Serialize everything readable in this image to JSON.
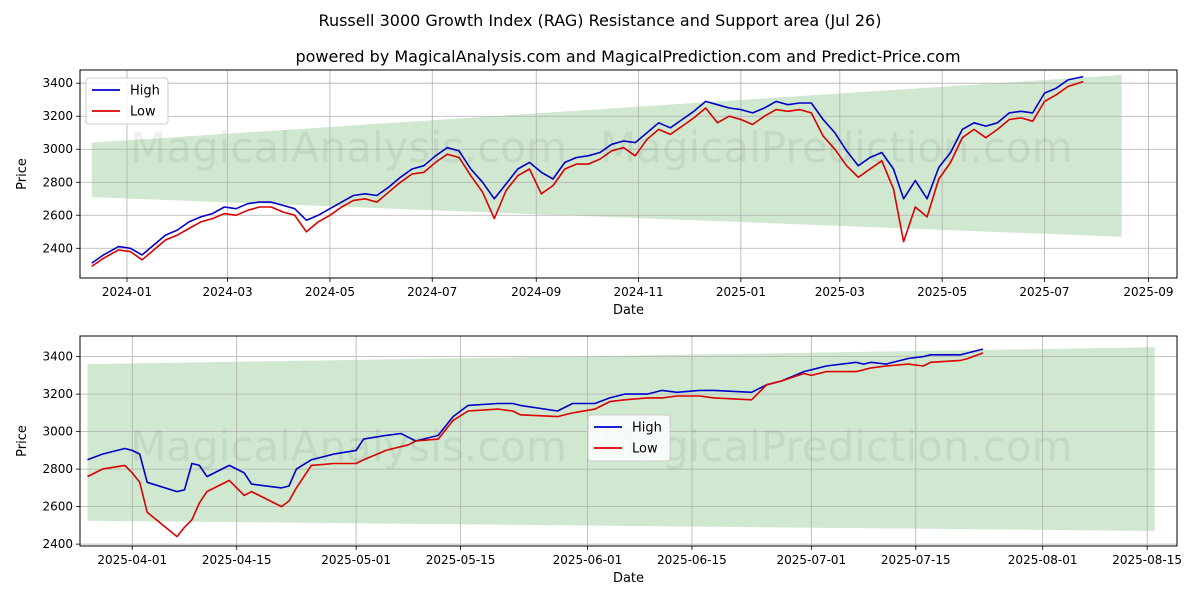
{
  "title": "Russell 3000 Growth Index (RAG) Resistance and Support area (Jul 26)",
  "subtitle": "powered by MagicalAnalysis.com and MagicalPrediction.com and Predict-Price.com",
  "watermarks": [
    "MagicalAnalysis.com",
    "MagicalPrediction.com"
  ],
  "colors": {
    "high": "#0000cc",
    "low": "#dd0000",
    "band": "#a8d5a8"
  },
  "chart_data": [
    {
      "type": "line",
      "xlabel": "Date",
      "ylabel": "Price",
      "xlim": [
        "2023-12-04",
        "2025-09-18"
      ],
      "ylim": [
        2220,
        3480
      ],
      "xticks": [
        "2024-01-01",
        "2024-03-01",
        "2024-05-01",
        "2024-07-01",
        "2024-09-01",
        "2024-11-01",
        "2025-01-01",
        "2025-03-01",
        "2025-05-01",
        "2025-07-01",
        "2025-09-01"
      ],
      "xtick_labels": [
        "2024-01",
        "2024-03",
        "2024-05",
        "2024-07",
        "2024-09",
        "2024-11",
        "2025-01",
        "2025-03",
        "2025-05",
        "2025-07",
        "2025-09"
      ],
      "yticks": [
        2400,
        2600,
        2800,
        3000,
        3200,
        3400
      ],
      "grid": true,
      "legend": "top-left",
      "band": {
        "start": "2023-12-11",
        "end": "2025-08-16",
        "upper": [
          3040,
          3450
        ],
        "lower": [
          2710,
          2470
        ]
      },
      "series": [
        {
          "name": "High",
          "x": [
            "2023-12-11",
            "2023-12-18",
            "2023-12-27",
            "2024-01-03",
            "2024-01-10",
            "2024-01-17",
            "2024-01-24",
            "2024-01-31",
            "2024-02-07",
            "2024-02-14",
            "2024-02-21",
            "2024-02-28",
            "2024-03-06",
            "2024-03-13",
            "2024-03-20",
            "2024-03-27",
            "2024-04-03",
            "2024-04-10",
            "2024-04-17",
            "2024-04-24",
            "2024-05-01",
            "2024-05-08",
            "2024-05-15",
            "2024-05-22",
            "2024-05-29",
            "2024-06-05",
            "2024-06-12",
            "2024-06-19",
            "2024-06-26",
            "2024-07-03",
            "2024-07-10",
            "2024-07-17",
            "2024-07-24",
            "2024-07-31",
            "2024-08-07",
            "2024-08-14",
            "2024-08-21",
            "2024-08-28",
            "2024-09-04",
            "2024-09-11",
            "2024-09-18",
            "2024-09-25",
            "2024-10-02",
            "2024-10-09",
            "2024-10-16",
            "2024-10-23",
            "2024-10-30",
            "2024-11-06",
            "2024-11-13",
            "2024-11-20",
            "2024-11-27",
            "2024-12-04",
            "2024-12-11",
            "2024-12-18",
            "2024-12-25",
            "2025-01-01",
            "2025-01-08",
            "2025-01-15",
            "2025-01-22",
            "2025-01-29",
            "2025-02-05",
            "2025-02-12",
            "2025-02-19",
            "2025-02-26",
            "2025-03-05",
            "2025-03-12",
            "2025-03-19",
            "2025-03-26",
            "2025-04-02",
            "2025-04-08",
            "2025-04-15",
            "2025-04-22",
            "2025-04-29",
            "2025-05-06",
            "2025-05-13",
            "2025-05-20",
            "2025-05-27",
            "2025-06-03",
            "2025-06-10",
            "2025-06-17",
            "2025-06-24",
            "2025-07-01",
            "2025-07-08",
            "2025-07-15",
            "2025-07-24"
          ],
          "values": [
            2310,
            2360,
            2410,
            2400,
            2360,
            2420,
            2480,
            2510,
            2560,
            2590,
            2610,
            2650,
            2640,
            2670,
            2680,
            2680,
            2660,
            2640,
            2570,
            2600,
            2640,
            2680,
            2720,
            2730,
            2720,
            2770,
            2830,
            2880,
            2900,
            2960,
            3010,
            2990,
            2880,
            2800,
            2700,
            2790,
            2880,
            2920,
            2860,
            2820,
            2920,
            2950,
            2960,
            2980,
            3030,
            3050,
            3040,
            3100,
            3160,
            3130,
            3180,
            3230,
            3290,
            3270,
            3250,
            3240,
            3220,
            3250,
            3290,
            3270,
            3280,
            3280,
            3180,
            3100,
            2990,
            2900,
            2950,
            2980,
            2880,
            2700,
            2810,
            2700,
            2890,
            2980,
            3120,
            3160,
            3140,
            3160,
            3220,
            3230,
            3220,
            3340,
            3370,
            3420,
            3440
          ]
        },
        {
          "name": "Low",
          "x": [
            "2023-12-11",
            "2023-12-18",
            "2023-12-27",
            "2024-01-03",
            "2024-01-10",
            "2024-01-17",
            "2024-01-24",
            "2024-01-31",
            "2024-02-07",
            "2024-02-14",
            "2024-02-21",
            "2024-02-28",
            "2024-03-06",
            "2024-03-13",
            "2024-03-20",
            "2024-03-27",
            "2024-04-03",
            "2024-04-10",
            "2024-04-17",
            "2024-04-24",
            "2024-05-01",
            "2024-05-08",
            "2024-05-15",
            "2024-05-22",
            "2024-05-29",
            "2024-06-05",
            "2024-06-12",
            "2024-06-19",
            "2024-06-26",
            "2024-07-03",
            "2024-07-10",
            "2024-07-17",
            "2024-07-24",
            "2024-07-31",
            "2024-08-07",
            "2024-08-14",
            "2024-08-21",
            "2024-08-28",
            "2024-09-04",
            "2024-09-11",
            "2024-09-18",
            "2024-09-25",
            "2024-10-02",
            "2024-10-09",
            "2024-10-16",
            "2024-10-23",
            "2024-10-30",
            "2024-11-06",
            "2024-11-13",
            "2024-11-20",
            "2024-11-27",
            "2024-12-04",
            "2024-12-11",
            "2024-12-18",
            "2024-12-25",
            "2025-01-01",
            "2025-01-08",
            "2025-01-15",
            "2025-01-22",
            "2025-01-29",
            "2025-02-05",
            "2025-02-12",
            "2025-02-19",
            "2025-02-26",
            "2025-03-05",
            "2025-03-12",
            "2025-03-19",
            "2025-03-26",
            "2025-04-02",
            "2025-04-08",
            "2025-04-15",
            "2025-04-22",
            "2025-04-29",
            "2025-05-06",
            "2025-05-13",
            "2025-05-20",
            "2025-05-27",
            "2025-06-03",
            "2025-06-10",
            "2025-06-17",
            "2025-06-24",
            "2025-07-01",
            "2025-07-08",
            "2025-07-15",
            "2025-07-24"
          ],
          "values": [
            2290,
            2340,
            2390,
            2380,
            2330,
            2390,
            2450,
            2480,
            2520,
            2560,
            2580,
            2610,
            2600,
            2630,
            2650,
            2650,
            2620,
            2600,
            2500,
            2560,
            2600,
            2650,
            2690,
            2700,
            2680,
            2740,
            2800,
            2850,
            2860,
            2920,
            2970,
            2950,
            2840,
            2740,
            2580,
            2750,
            2840,
            2880,
            2730,
            2780,
            2880,
            2910,
            2910,
            2940,
            2990,
            3010,
            2960,
            3060,
            3120,
            3090,
            3140,
            3190,
            3250,
            3160,
            3200,
            3180,
            3150,
            3200,
            3240,
            3230,
            3240,
            3220,
            3080,
            3000,
            2900,
            2830,
            2880,
            2930,
            2760,
            2440,
            2650,
            2590,
            2820,
            2920,
            3070,
            3120,
            3070,
            3120,
            3180,
            3190,
            3170,
            3290,
            3330,
            3380,
            3410
          ]
        }
      ]
    },
    {
      "type": "line",
      "xlabel": "Date",
      "ylabel": "Price",
      "xlim": [
        "2025-03-25",
        "2025-08-19"
      ],
      "ylim": [
        2390,
        3510
      ],
      "xticks": [
        "2025-04-01",
        "2025-04-15",
        "2025-05-01",
        "2025-05-15",
        "2025-06-01",
        "2025-06-15",
        "2025-07-01",
        "2025-07-15",
        "2025-08-01",
        "2025-08-15"
      ],
      "xtick_labels": [
        "2025-04-01",
        "2025-04-15",
        "2025-05-01",
        "2025-05-15",
        "2025-06-01",
        "2025-06-15",
        "2025-07-01",
        "2025-07-15",
        "2025-08-01",
        "2025-08-15"
      ],
      "yticks": [
        2400,
        2600,
        2800,
        3000,
        3200,
        3400
      ],
      "grid": true,
      "legend": "center",
      "band": {
        "start": "2025-03-26",
        "end": "2025-08-16",
        "upper": [
          3360,
          3450
        ],
        "lower": [
          2525,
          2470
        ]
      },
      "series": [
        {
          "name": "High",
          "x": [
            "2025-03-26",
            "2025-03-28",
            "2025-03-31",
            "2025-04-01",
            "2025-04-02",
            "2025-04-03",
            "2025-04-07",
            "2025-04-08",
            "2025-04-09",
            "2025-04-10",
            "2025-04-11",
            "2025-04-14",
            "2025-04-16",
            "2025-04-17",
            "2025-04-21",
            "2025-04-22",
            "2025-04-23",
            "2025-04-25",
            "2025-04-28",
            "2025-05-01",
            "2025-05-02",
            "2025-05-05",
            "2025-05-07",
            "2025-05-08",
            "2025-05-09",
            "2025-05-12",
            "2025-05-14",
            "2025-05-16",
            "2025-05-20",
            "2025-05-22",
            "2025-05-23",
            "2025-05-28",
            "2025-05-30",
            "2025-06-02",
            "2025-06-04",
            "2025-06-06",
            "2025-06-09",
            "2025-06-11",
            "2025-06-13",
            "2025-06-16",
            "2025-06-18",
            "2025-06-23",
            "2025-06-25",
            "2025-06-27",
            "2025-06-30",
            "2025-07-01",
            "2025-07-03",
            "2025-07-07",
            "2025-07-08",
            "2025-07-09",
            "2025-07-11",
            "2025-07-14",
            "2025-07-16",
            "2025-07-17",
            "2025-07-21",
            "2025-07-22",
            "2025-07-24"
          ],
          "values": [
            2850,
            2880,
            2910,
            2900,
            2880,
            2730,
            2680,
            2690,
            2830,
            2820,
            2760,
            2820,
            2780,
            2720,
            2700,
            2710,
            2800,
            2850,
            2880,
            2900,
            2960,
            2980,
            2990,
            2970,
            2950,
            2980,
            3080,
            3140,
            3150,
            3150,
            3140,
            3110,
            3150,
            3150,
            3180,
            3200,
            3200,
            3220,
            3210,
            3220,
            3220,
            3210,
            3250,
            3270,
            3320,
            3330,
            3350,
            3370,
            3360,
            3370,
            3360,
            3390,
            3400,
            3410,
            3410,
            3420,
            3440
          ]
        },
        {
          "name": "Low",
          "x": [
            "2025-03-26",
            "2025-03-28",
            "2025-03-31",
            "2025-04-01",
            "2025-04-02",
            "2025-04-03",
            "2025-04-07",
            "2025-04-08",
            "2025-04-09",
            "2025-04-10",
            "2025-04-11",
            "2025-04-14",
            "2025-04-16",
            "2025-04-17",
            "2025-04-21",
            "2025-04-22",
            "2025-04-23",
            "2025-04-25",
            "2025-04-28",
            "2025-05-01",
            "2025-05-02",
            "2025-05-05",
            "2025-05-07",
            "2025-05-08",
            "2025-05-09",
            "2025-05-12",
            "2025-05-14",
            "2025-05-16",
            "2025-05-20",
            "2025-05-22",
            "2025-05-23",
            "2025-05-28",
            "2025-05-30",
            "2025-06-02",
            "2025-06-04",
            "2025-06-06",
            "2025-06-09",
            "2025-06-11",
            "2025-06-13",
            "2025-06-16",
            "2025-06-18",
            "2025-06-23",
            "2025-06-25",
            "2025-06-27",
            "2025-06-30",
            "2025-07-01",
            "2025-07-03",
            "2025-07-07",
            "2025-07-08",
            "2025-07-09",
            "2025-07-11",
            "2025-07-14",
            "2025-07-16",
            "2025-07-17",
            "2025-07-21",
            "2025-07-22",
            "2025-07-24"
          ],
          "values": [
            2760,
            2800,
            2820,
            2780,
            2730,
            2570,
            2440,
            2490,
            2530,
            2620,
            2680,
            2740,
            2660,
            2680,
            2600,
            2630,
            2700,
            2820,
            2830,
            2830,
            2850,
            2900,
            2920,
            2930,
            2950,
            2960,
            3060,
            3110,
            3120,
            3110,
            3090,
            3080,
            3100,
            3120,
            3160,
            3170,
            3180,
            3180,
            3190,
            3190,
            3180,
            3170,
            3250,
            3270,
            3310,
            3300,
            3320,
            3320,
            3330,
            3340,
            3350,
            3360,
            3350,
            3370,
            3380,
            3390,
            3420
          ]
        }
      ]
    }
  ]
}
